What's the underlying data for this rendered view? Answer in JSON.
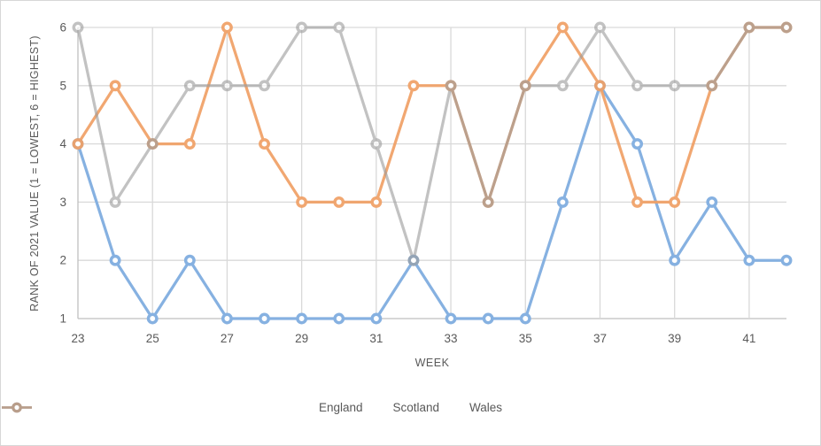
{
  "chart_data": {
    "type": "line",
    "title": "",
    "xlabel": "WEEK",
    "ylabel": "RANK OF 2021 VALUE (1 = LOWEST, 6 = HIGHEST)",
    "x": [
      23,
      24,
      25,
      26,
      27,
      28,
      29,
      30,
      31,
      32,
      33,
      34,
      35,
      36,
      37,
      38,
      39,
      40,
      41,
      42
    ],
    "xlim": [
      23,
      42
    ],
    "ylim": [
      1,
      6
    ],
    "x_tick_labels": [
      23,
      25,
      27,
      29,
      31,
      33,
      35,
      37,
      39,
      41
    ],
    "y_tick_labels": [
      1,
      2,
      3,
      4,
      5,
      6
    ],
    "grid": true,
    "legend_position": "bottom",
    "series": [
      {
        "name": "England",
        "color": "#86b1e1",
        "opacity": 1,
        "values": [
          4,
          2,
          1,
          2,
          1,
          1,
          1,
          1,
          1,
          2,
          1,
          1,
          1,
          3,
          5,
          4,
          2,
          3,
          2,
          2
        ]
      },
      {
        "name": "Scotland",
        "color": "#f0a066",
        "opacity": 0.92,
        "values": [
          4,
          5,
          4,
          4,
          6,
          4,
          3,
          3,
          3,
          5,
          5,
          3,
          5,
          6,
          5,
          3,
          3,
          5,
          6,
          6
        ]
      },
      {
        "name": "Wales",
        "color": "#9d9d9d",
        "opacity": 0.62,
        "values": [
          6,
          3,
          4,
          5,
          5,
          5,
          6,
          6,
          4,
          2,
          5,
          3,
          5,
          5,
          6,
          5,
          5,
          5,
          6,
          6
        ]
      }
    ]
  },
  "colors": {
    "gridline": "#d9d9d9",
    "axis_line": "#bfbfbf",
    "tick_text": "#595959",
    "frame_border": "#d7d7d7",
    "marker_fill": "#ffffff"
  }
}
